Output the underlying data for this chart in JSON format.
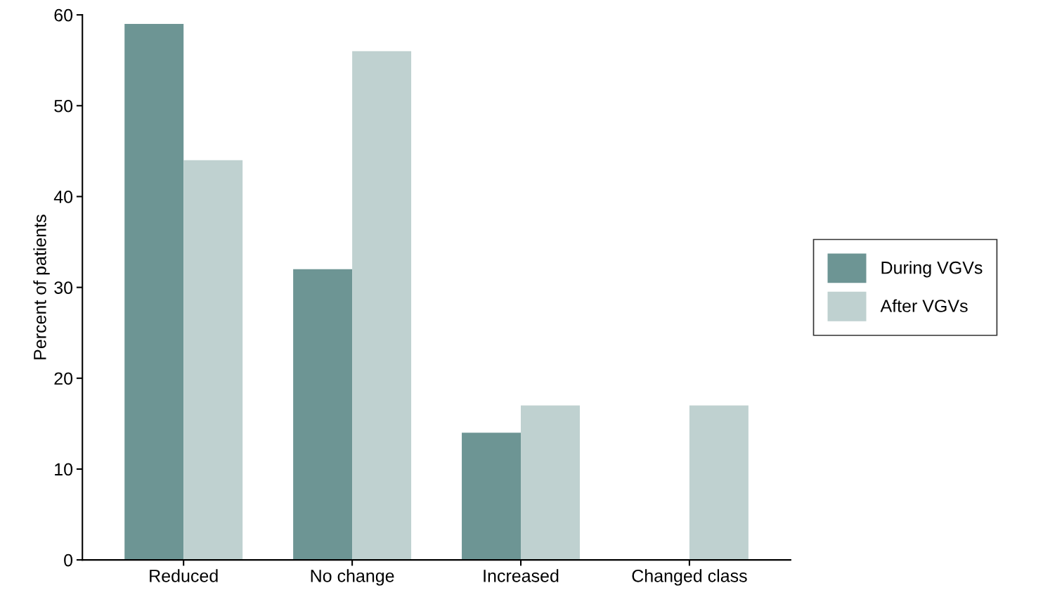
{
  "chart_data": {
    "type": "bar",
    "ylabel": "Percent of patients",
    "categories": [
      "Reduced",
      "No change",
      "Increased",
      "Changed class"
    ],
    "series": [
      {
        "name": "During VGVs",
        "color": "#6d9594",
        "values": [
          59,
          32,
          14,
          0
        ]
      },
      {
        "name": "After VGVs",
        "color": "#bfd1d0",
        "values": [
          44,
          56,
          17,
          17
        ]
      }
    ],
    "ylim": [
      0,
      60
    ],
    "yticks": [
      0,
      10,
      20,
      30,
      40,
      50,
      60
    ],
    "grid": false,
    "legend": "right"
  }
}
